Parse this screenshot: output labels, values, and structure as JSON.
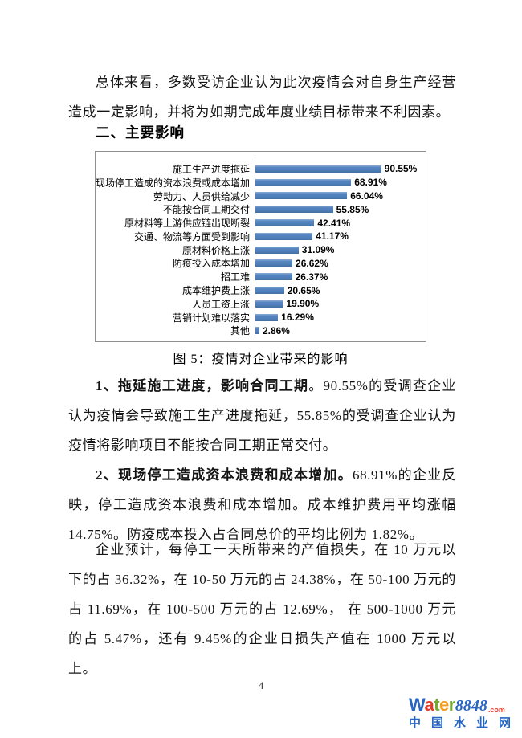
{
  "page": {
    "intro_paragraph": "总体来看，多数受访企业认为此次疫情会对自身生产经营造成一定影响，并将为如期完成年度业绩目标带来不利因素。",
    "section_heading": "二、主要影响",
    "figure_caption": "图 5：疫情对企业带来的影响",
    "body_paragraphs": [
      {
        "bold": "1、拖延施工进度，影响合同工期",
        "rest": "。90.55%的受调查企业认为疫情会导致施工生产进度拖延，55.85%的受调查企业认为疫情将影响项目不能按合同工期正常交付。"
      },
      {
        "bold": "2、现场停工造成资本浪费和成本增加。",
        "rest": "68.91%的企业反映，停工造成资本浪费和成本增加。成本维护费用平均涨幅 14.75%。防疫成本投入占合同总价的平均比例为 1.82%。"
      },
      {
        "bold": "",
        "rest": "企业预计，每停工一天所带来的产值损失，在 10 万元以下的占 36.32%，在 10-50 万元的占 24.38%，在 50-100 万元的占 11.69%，在 100-500 万元的占 12.69%， 在 500-1000 万元的占 5.47%，还有 9.45%的企业日损失产值在 1000 万元以上。"
      }
    ],
    "page_number": "4"
  },
  "chart_data": {
    "type": "bar",
    "orientation": "horizontal",
    "title": "图 5：疫情对企业带来的影响",
    "categories": [
      "施工生产进度拖延",
      "现场停工造成的资本浪费或成本增加",
      "劳动力、人员供给减少",
      "不能按合同工期交付",
      "原材料等上游供应链出现断裂",
      "交通、物流等方面受到影响",
      "原材料价格上涨",
      "防疫投入成本增加",
      "招工难",
      "成本维护费上涨",
      "人员工资上涨",
      "营销计划难以落实",
      "其他"
    ],
    "values": [
      90.55,
      68.91,
      66.04,
      55.85,
      42.41,
      41.17,
      31.09,
      26.62,
      26.37,
      20.65,
      19.9,
      16.29,
      2.86
    ],
    "value_labels": [
      "90.55%",
      "68.91%",
      "66.04%",
      "55.85%",
      "42.41%",
      "41.17%",
      "31.09%",
      "26.62%",
      "26.37%",
      "20.65%",
      "19.90%",
      "16.29%",
      "2.86%"
    ],
    "xlabel": "",
    "ylabel": "",
    "xlim": [
      0,
      100
    ],
    "grid": false,
    "legend": false,
    "bar_color": "#4f81bd",
    "axis_color": "#8c8c8c",
    "border_color": "#909090"
  },
  "logo": {
    "letters": [
      {
        "ch": "W",
        "color": "#2766c5"
      },
      {
        "ch": "a",
        "color": "#e23a2a"
      },
      {
        "ch": "t",
        "color": "#74aa2e"
      },
      {
        "ch": "e",
        "color": "#f59c1d"
      },
      {
        "ch": "r",
        "color": "#74aa2e"
      }
    ],
    "suffix": "8848",
    "suffix_color": "#2766c5",
    "dotcom": ".com",
    "dotcom_color": "#e8432e",
    "subtitle": "中国水业网",
    "subtitle_color": "#2766c5"
  }
}
